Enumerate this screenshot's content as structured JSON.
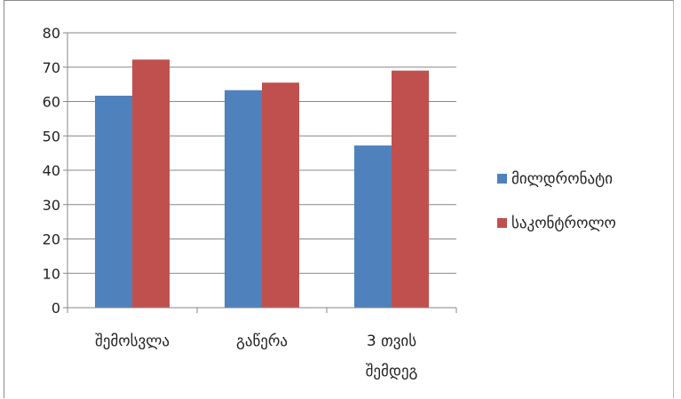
{
  "chart_data": {
    "type": "bar",
    "categories": [
      [
        "შემოსვლა"
      ],
      [
        "გაწერა"
      ],
      [
        "3 თვის",
        "შემდეგ"
      ]
    ],
    "series": [
      {
        "name": "მილდრონატი",
        "color": "#4f81bd",
        "values": [
          61.7,
          63.3,
          47.2
        ]
      },
      {
        "name": "საკონტროლო",
        "color": "#c0504d",
        "values": [
          72.2,
          65.5,
          69.0
        ]
      }
    ],
    "yticks": [
      "0",
      "10",
      "20",
      "30",
      "40",
      "50",
      "60",
      "70",
      "80"
    ],
    "ylim": [
      0,
      80
    ],
    "grid": true,
    "legend_position": "right",
    "title": "",
    "xlabel": "",
    "ylabel": ""
  }
}
